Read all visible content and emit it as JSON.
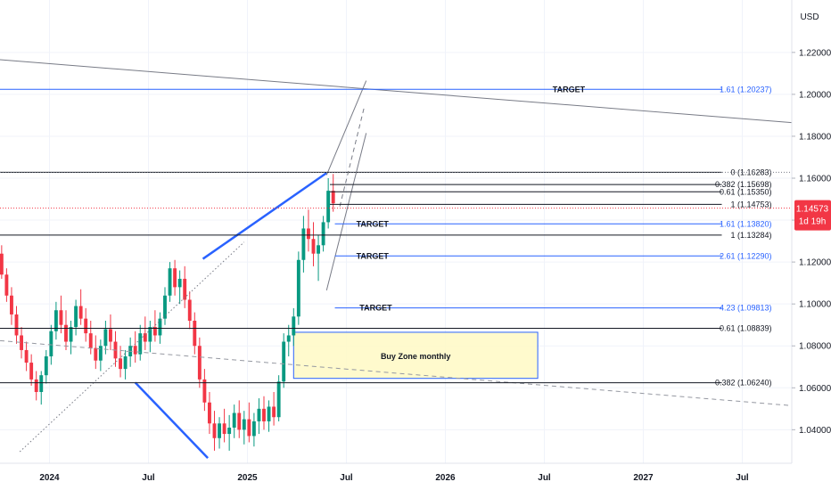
{
  "chart_data": {
    "type": "candlestick",
    "currency": "USD",
    "price_axis": {
      "ticks": [
        "1.22000",
        "1.20000",
        "1.18000",
        "1.16000",
        "1.14000",
        "1.12000",
        "1.10000",
        "1.08000",
        "1.06000",
        "1.04000"
      ],
      "ylim": [
        1.024,
        1.245
      ]
    },
    "time_axis": {
      "labels": [
        "2024",
        "Jul",
        "2025",
        "Jul",
        "2026",
        "Jul",
        "2027",
        "Jul"
      ],
      "label_months": [
        0,
        6,
        12,
        18,
        24,
        30,
        36,
        42
      ],
      "xlim": [
        -3,
        45
      ]
    },
    "current_price": {
      "value": 1.14573,
      "label": "1.14573",
      "countdown": "1d 19h",
      "color": "#f23645"
    },
    "levels": [
      {
        "label": "1.61 (1.20237)",
        "value": 1.20237,
        "color": "#2962ff",
        "target_text": "TARGET"
      },
      {
        "label": "0 (1.16283)",
        "value": 1.16283,
        "color": "#131722",
        "target_text": ""
      },
      {
        "label": "0.382 (1.15698)",
        "value": 1.15698,
        "color": "#131722",
        "target_text": ""
      },
      {
        "label": "0.61 (1.15350)",
        "value": 1.1535,
        "color": "#131722",
        "target_text": ""
      },
      {
        "label": "1 (1.14753)",
        "value": 1.14753,
        "color": "#131722",
        "target_text": ""
      },
      {
        "label": "1.61 (1.13820)",
        "value": 1.1382,
        "color": "#2962ff",
        "target_text": "TARGET"
      },
      {
        "label": "1 (1.13284)",
        "value": 1.13284,
        "color": "#131722",
        "target_text": ""
      },
      {
        "label": "2.61 (1.12290)",
        "value": 1.1229,
        "color": "#2962ff",
        "target_text": "TARGET"
      },
      {
        "label": "4.23 (1.09813)",
        "value": 1.09813,
        "color": "#2962ff",
        "target_text": "TARGET"
      },
      {
        "label": "0.61 (1.08839)",
        "value": 1.08839,
        "color": "#131722",
        "target_text": ""
      },
      {
        "label": "0.382 (1.06240)",
        "value": 1.0624,
        "color": "#131722",
        "target_text": ""
      }
    ],
    "buy_zone": {
      "label": "Buy Zone monthly",
      "x0": 14.8,
      "x1": 29.6,
      "y0": 1.0865,
      "y1": 1.0645
    },
    "trendlines": [
      {
        "style": "solid",
        "color": "#787b86",
        "points": [
          [
            -3,
            1.2165
          ],
          [
            45,
            1.1865
          ]
        ]
      },
      {
        "style": "dashed",
        "color": "#9598a1",
        "points": [
          [
            -3,
            1.0825
          ],
          [
            45,
            1.0515
          ]
        ]
      },
      {
        "style": "dotted",
        "color": "#787b86",
        "points": [
          [
            -1.8,
            1.0295
          ],
          [
            11.8,
            1.1295
          ]
        ]
      },
      {
        "style": "solid",
        "color": "#2962ff",
        "points": [
          [
            5.2,
            1.0625
          ],
          [
            9.6,
            1.0265
          ]
        ]
      },
      {
        "style": "solid",
        "color": "#2962ff",
        "points": [
          [
            9.3,
            1.1215
          ],
          [
            16.8,
            1.1625
          ]
        ]
      },
      {
        "style": "solid",
        "color": "#787b86",
        "points": [
          [
            16.8,
            1.1065
          ],
          [
            19.2,
            1.1815
          ]
        ]
      },
      {
        "style": "solid",
        "color": "#787b86",
        "points": [
          [
            16.8,
            1.1615
          ],
          [
            19.2,
            1.2065
          ]
        ]
      },
      {
        "style": "dashed",
        "color": "#787b86",
        "points": [
          [
            17.6,
            1.1465
          ],
          [
            19.1,
            1.1945
          ]
        ]
      }
    ],
    "candles": [
      [
        -2.9,
        1.124,
        1.128,
        1.112,
        1.114
      ],
      [
        -2.6,
        1.114,
        1.117,
        1.101,
        1.104
      ],
      [
        -2.3,
        1.104,
        1.108,
        1.09,
        1.095
      ],
      [
        -2.0,
        1.095,
        1.099,
        1.081,
        1.085
      ],
      [
        -1.7,
        1.085,
        1.089,
        1.074,
        1.078
      ],
      [
        -1.4,
        1.078,
        1.082,
        1.068,
        1.072
      ],
      [
        -1.1,
        1.072,
        1.076,
        1.061,
        1.064
      ],
      [
        -0.8,
        1.064,
        1.068,
        1.054,
        1.058
      ],
      [
        -0.5,
        1.058,
        1.068,
        1.052,
        1.066
      ],
      [
        -0.2,
        1.066,
        1.078,
        1.062,
        1.075
      ],
      [
        0.1,
        1.075,
        1.09,
        1.071,
        1.087
      ],
      [
        0.4,
        1.087,
        1.101,
        1.083,
        1.097
      ],
      [
        0.7,
        1.097,
        1.104,
        1.086,
        1.09
      ],
      [
        1.0,
        1.09,
        1.097,
        1.078,
        1.082
      ],
      [
        1.3,
        1.082,
        1.092,
        1.076,
        1.089
      ],
      [
        1.6,
        1.089,
        1.102,
        1.085,
        1.099
      ],
      [
        1.9,
        1.099,
        1.107,
        1.09,
        1.093
      ],
      [
        2.2,
        1.093,
        1.098,
        1.082,
        1.086
      ],
      [
        2.5,
        1.086,
        1.092,
        1.076,
        1.079
      ],
      [
        2.8,
        1.079,
        1.085,
        1.069,
        1.073
      ],
      [
        3.1,
        1.073,
        1.083,
        1.068,
        1.08
      ],
      [
        3.4,
        1.08,
        1.092,
        1.076,
        1.088
      ],
      [
        3.7,
        1.088,
        1.095,
        1.078,
        1.082
      ],
      [
        4.0,
        1.082,
        1.087,
        1.07,
        1.074
      ],
      [
        4.3,
        1.074,
        1.08,
        1.065,
        1.069
      ],
      [
        4.6,
        1.069,
        1.078,
        1.064,
        1.075
      ],
      [
        4.9,
        1.075,
        1.084,
        1.07,
        1.08
      ],
      [
        5.2,
        1.08,
        1.087,
        1.072,
        1.076
      ],
      [
        5.5,
        1.076,
        1.09,
        1.073,
        1.086
      ],
      [
        5.8,
        1.086,
        1.094,
        1.078,
        1.082
      ],
      [
        6.1,
        1.082,
        1.092,
        1.077,
        1.089
      ],
      [
        6.4,
        1.089,
        1.097,
        1.082,
        1.085
      ],
      [
        6.7,
        1.085,
        1.096,
        1.081,
        1.093
      ],
      [
        7.0,
        1.093,
        1.108,
        1.09,
        1.104
      ],
      [
        7.3,
        1.104,
        1.12,
        1.101,
        1.117
      ],
      [
        7.6,
        1.117,
        1.121,
        1.104,
        1.108
      ],
      [
        7.9,
        1.108,
        1.116,
        1.1,
        1.112
      ],
      [
        8.2,
        1.112,
        1.118,
        1.098,
        1.102
      ],
      [
        8.5,
        1.102,
        1.106,
        1.088,
        1.092
      ],
      [
        8.8,
        1.092,
        1.096,
        1.076,
        1.08
      ],
      [
        9.1,
        1.08,
        1.084,
        1.06,
        1.064
      ],
      [
        9.4,
        1.064,
        1.069,
        1.049,
        1.053
      ],
      [
        9.7,
        1.053,
        1.058,
        1.038,
        1.043
      ],
      [
        10.0,
        1.043,
        1.049,
        1.03,
        1.036
      ],
      [
        10.3,
        1.036,
        1.046,
        1.031,
        1.043
      ],
      [
        10.6,
        1.043,
        1.05,
        1.034,
        1.038
      ],
      [
        10.9,
        1.038,
        1.047,
        1.03,
        1.041
      ],
      [
        11.2,
        1.041,
        1.052,
        1.036,
        1.048
      ],
      [
        11.5,
        1.048,
        1.054,
        1.036,
        1.04
      ],
      [
        11.8,
        1.04,
        1.049,
        1.033,
        1.045
      ],
      [
        12.1,
        1.045,
        1.053,
        1.034,
        1.037
      ],
      [
        12.4,
        1.037,
        1.048,
        1.032,
        1.044
      ],
      [
        12.7,
        1.044,
        1.055,
        1.038,
        1.05
      ],
      [
        13.0,
        1.05,
        1.056,
        1.04,
        1.044
      ],
      [
        13.3,
        1.044,
        1.054,
        1.039,
        1.051
      ],
      [
        13.6,
        1.051,
        1.058,
        1.042,
        1.046
      ],
      [
        13.9,
        1.046,
        1.066,
        1.044,
        1.063
      ],
      [
        14.2,
        1.063,
        1.086,
        1.06,
        1.082
      ],
      [
        14.5,
        1.082,
        1.09,
        1.075,
        1.085
      ],
      [
        14.8,
        1.085,
        1.098,
        1.08,
        1.094
      ],
      [
        15.1,
        1.094,
        1.125,
        1.09,
        1.121
      ],
      [
        15.4,
        1.121,
        1.142,
        1.115,
        1.136
      ],
      [
        15.7,
        1.136,
        1.145,
        1.125,
        1.131
      ],
      [
        16.0,
        1.131,
        1.139,
        1.118,
        1.124
      ],
      [
        16.3,
        1.124,
        1.133,
        1.111,
        1.128
      ],
      [
        16.6,
        1.128,
        1.142,
        1.125,
        1.139
      ],
      [
        16.9,
        1.139,
        1.16,
        1.136,
        1.154
      ],
      [
        17.2,
        1.154,
        1.162,
        1.144,
        1.148
      ]
    ]
  }
}
